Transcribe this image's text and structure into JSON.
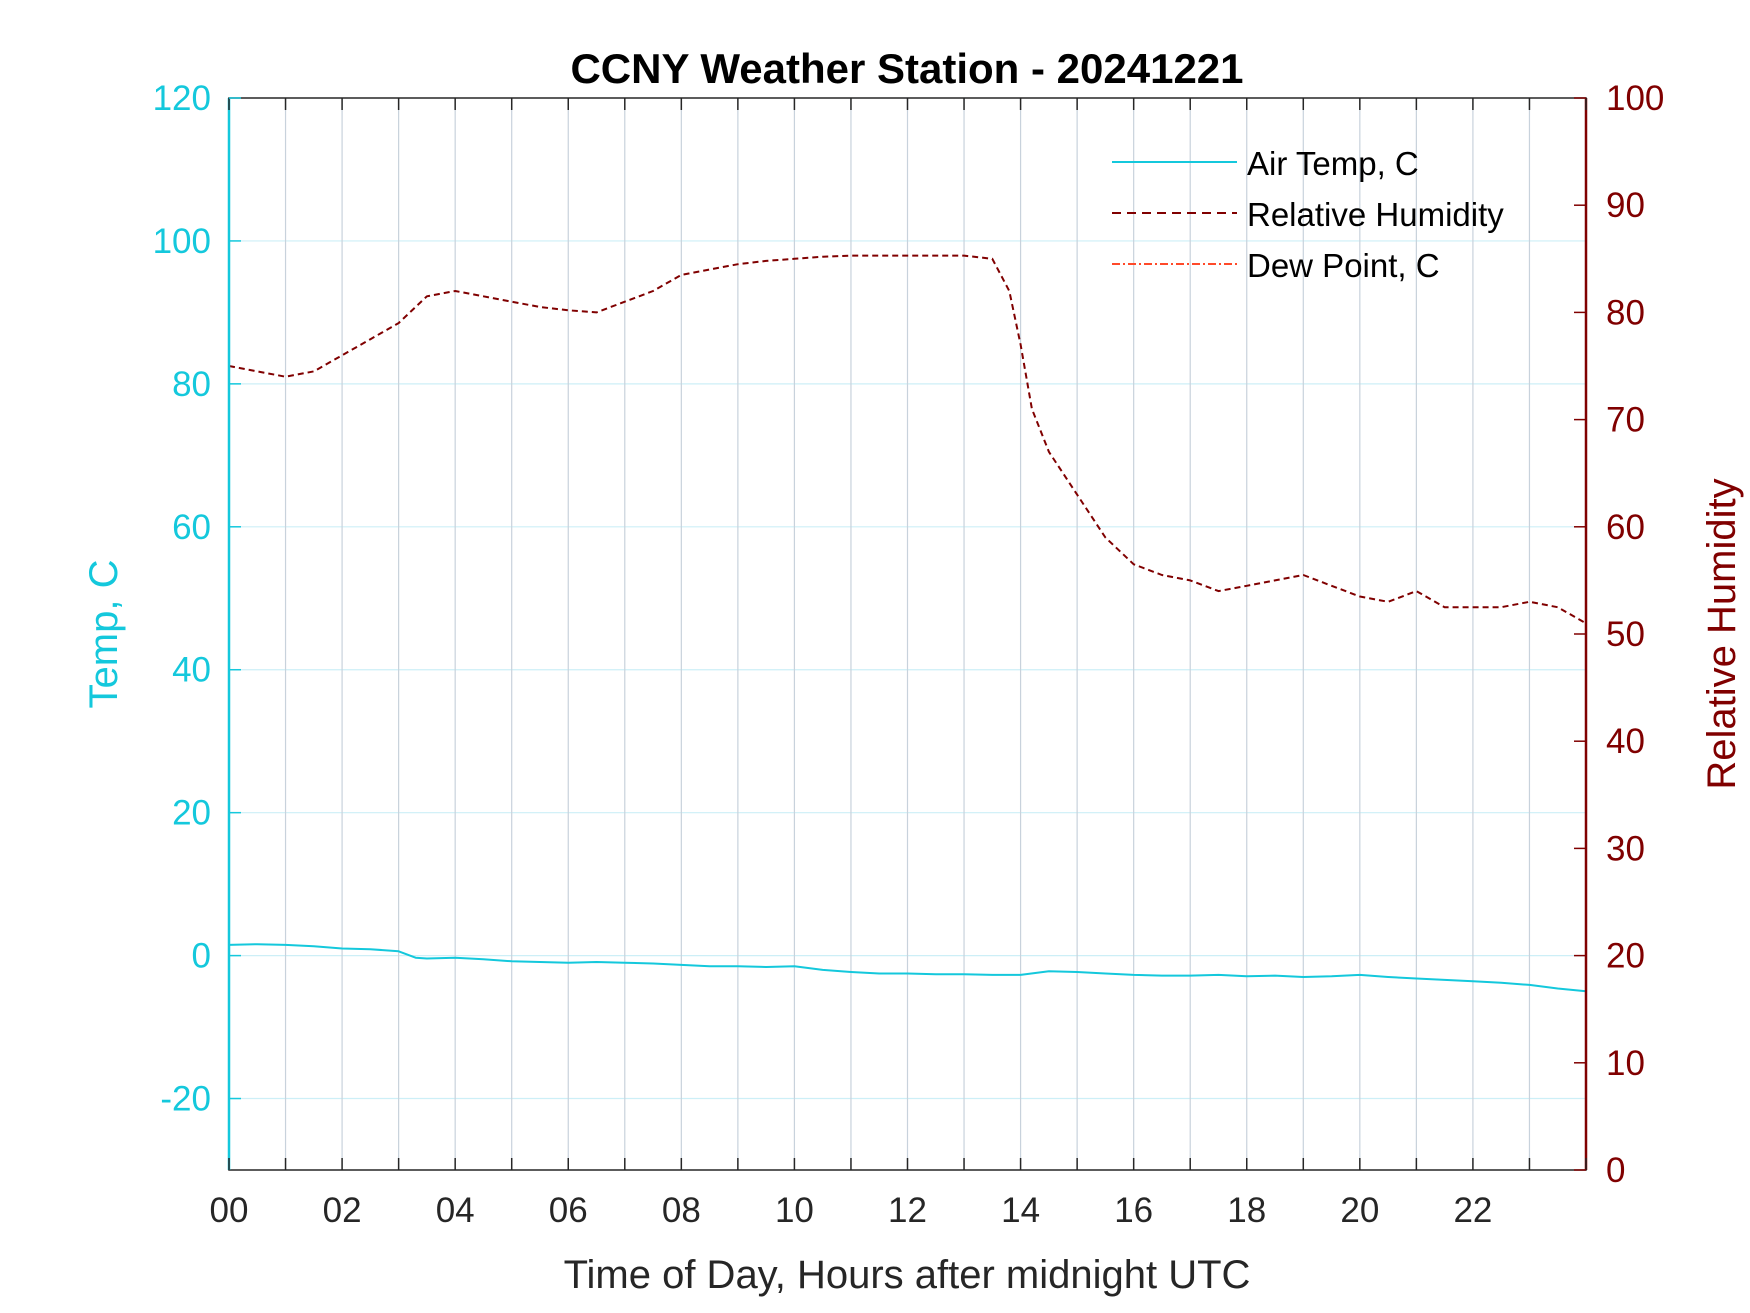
{
  "colors": {
    "temp_axis": "#14c8dc",
    "rh_axis": "#800000",
    "air_temp": "#14c8dc",
    "relative_humidity": "#800000",
    "dew_point": "#ff4a2a",
    "grid": "#c8d2dc",
    "grid_left": "#cdeff7",
    "axis_box": "#262626"
  },
  "chart_data": {
    "type": "line",
    "title": "CCNY Weather Station - 20241221",
    "xlabel": "Time of Day, Hours after midnight UTC",
    "ylabel_left": "Temp, C",
    "ylabel_right": "Relative Humidity",
    "xlim": [
      0,
      24
    ],
    "ylim_left": [
      -30,
      120
    ],
    "ylim_right": [
      0,
      100
    ],
    "x_ticks": [
      0,
      2,
      4,
      6,
      8,
      10,
      12,
      14,
      16,
      18,
      20,
      22
    ],
    "x_tick_labels": [
      "00",
      "02",
      "04",
      "06",
      "08",
      "10",
      "12",
      "14",
      "16",
      "18",
      "20",
      "22"
    ],
    "y_left_ticks": [
      -20,
      0,
      20,
      40,
      60,
      80,
      100,
      120
    ],
    "y_left_tick_labels": [
      "-20",
      "0",
      "20",
      "40",
      "60",
      "80",
      "100",
      "120"
    ],
    "y_right_ticks": [
      0,
      10,
      20,
      30,
      40,
      50,
      60,
      70,
      80,
      90,
      100
    ],
    "y_right_tick_labels": [
      "0",
      "10",
      "20",
      "30",
      "40",
      "50",
      "60",
      "70",
      "80",
      "90",
      "100"
    ],
    "grid": "on",
    "legend_position": "top-right",
    "series": [
      {
        "name": "Air Temp, C",
        "axis": "left",
        "style": "solid",
        "x": [
          0,
          0.5,
          1,
          1.5,
          2,
          2.5,
          3,
          3.3,
          3.5,
          4,
          4.5,
          5,
          5.5,
          6,
          6.5,
          7,
          7.5,
          8,
          8.5,
          9,
          9.5,
          10,
          10.5,
          11,
          11.5,
          12,
          12.5,
          13,
          13.5,
          14,
          14.5,
          15,
          15.5,
          16,
          16.5,
          17,
          17.5,
          18,
          18.5,
          19,
          19.5,
          20,
          20.5,
          21,
          21.5,
          22,
          22.5,
          23,
          23.5,
          24
        ],
        "values": [
          1.5,
          1.6,
          1.5,
          1.3,
          1.0,
          0.9,
          0.6,
          -0.3,
          -0.4,
          -0.3,
          -0.5,
          -0.8,
          -0.9,
          -1.0,
          -0.9,
          -1.0,
          -1.1,
          -1.3,
          -1.5,
          -1.5,
          -1.6,
          -1.5,
          -2.0,
          -2.3,
          -2.5,
          -2.5,
          -2.6,
          -2.6,
          -2.7,
          -2.7,
          -2.2,
          -2.3,
          -2.5,
          -2.7,
          -2.8,
          -2.8,
          -2.7,
          -2.9,
          -2.8,
          -3.0,
          -2.9,
          -2.7,
          -3.0,
          -3.2,
          -3.4,
          -3.6,
          -3.8,
          -4.1,
          -4.6,
          -5.0
        ]
      },
      {
        "name": "Relative Humidity",
        "axis": "right",
        "style": "dashed",
        "x": [
          0,
          0.5,
          1,
          1.5,
          2,
          2.5,
          3,
          3.5,
          4,
          4.5,
          5,
          5.5,
          6,
          6.5,
          7,
          7.5,
          8,
          8.5,
          9,
          9.5,
          10,
          10.5,
          11,
          11.5,
          12,
          12.5,
          13,
          13.5,
          13.8,
          14,
          14.2,
          14.5,
          15,
          15.5,
          16,
          16.5,
          17,
          17.5,
          18,
          18.5,
          19,
          19.5,
          20,
          20.5,
          21,
          21.5,
          22,
          22.5,
          23,
          23.5,
          24
        ],
        "values": [
          75.0,
          74.5,
          74.0,
          74.5,
          76.0,
          77.5,
          79.0,
          81.5,
          82.0,
          81.5,
          81.0,
          80.5,
          80.2,
          80.0,
          81.0,
          82.0,
          83.5,
          84.0,
          84.5,
          84.8,
          85.0,
          85.2,
          85.3,
          85.3,
          85.3,
          85.3,
          85.3,
          85.0,
          82.0,
          77.0,
          71.0,
          67.0,
          63.0,
          59.0,
          56.5,
          55.5,
          55.0,
          54.0,
          54.5,
          55.0,
          55.5,
          54.5,
          53.5,
          53.0,
          54.0,
          52.5,
          52.5,
          52.5,
          53.0,
          52.5,
          51.0
        ]
      },
      {
        "name": "Dew Point, C",
        "axis": "left",
        "style": "dash-dot",
        "x": [],
        "values": []
      }
    ]
  }
}
